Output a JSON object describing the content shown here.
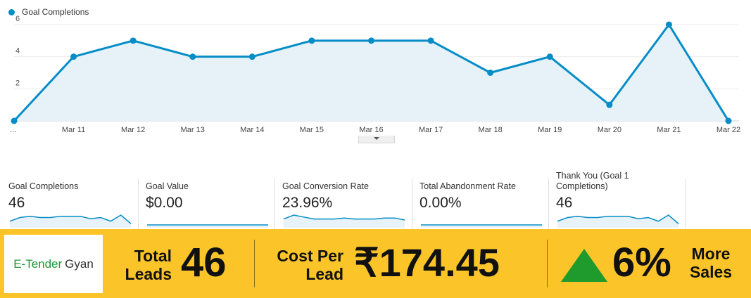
{
  "legend": {
    "label": "Goal Completions",
    "color": "#058dc7"
  },
  "chart_data": {
    "type": "area",
    "series": [
      {
        "name": "Goal Completions",
        "values": [
          0,
          4,
          5,
          4,
          4,
          5,
          5,
          5,
          3,
          4,
          1,
          6,
          0
        ]
      }
    ],
    "x": [
      "...",
      "Mar 11",
      "Mar 12",
      "Mar 13",
      "Mar 14",
      "Mar 15",
      "Mar 16",
      "Mar 17",
      "Mar 18",
      "Mar 19",
      "Mar 20",
      "Mar 21",
      "Mar 22"
    ],
    "yticks": [
      "2",
      "4",
      "6"
    ],
    "ylim": [
      0,
      6
    ],
    "grid": true,
    "line_color": "#058dc7",
    "fill_color": "#e6f2f8"
  },
  "metrics": [
    {
      "label": "Goal Completions",
      "value": "46",
      "spark": [
        3,
        6,
        7,
        6,
        6,
        7,
        7,
        7,
        5,
        6,
        3,
        8,
        1
      ]
    },
    {
      "label": "Goal Value",
      "value": "$0.00",
      "spark": [
        0,
        0,
        0,
        0,
        0,
        0,
        0,
        0,
        0,
        0,
        0,
        0,
        0
      ]
    },
    {
      "label": "Goal Conversion Rate",
      "value": "23.96%",
      "spark": [
        6,
        10,
        8,
        6,
        6,
        6,
        7,
        6,
        6,
        6,
        7,
        7,
        5
      ]
    },
    {
      "label": "Total Abandonment Rate",
      "value": "0.00%",
      "spark": [
        0,
        0,
        0,
        0,
        0,
        0,
        0,
        0,
        0,
        0,
        0,
        0,
        0
      ]
    },
    {
      "label": "Thank You (Goal 1 Completions)",
      "value": "46",
      "spark": [
        3,
        6,
        7,
        6,
        6,
        7,
        7,
        7,
        5,
        6,
        3,
        8,
        1
      ]
    }
  ],
  "banner": {
    "logo_part1": "E-Tender",
    "logo_part2": "Gyan",
    "leads_line1": "Total",
    "leads_line2": "Leads",
    "leads_value": "46",
    "cost_line1": "Cost Per",
    "cost_line2": "Lead",
    "cost_value": "₹174.45",
    "sales_value": "6%",
    "sales_line1": "More",
    "sales_line2": "Sales"
  }
}
